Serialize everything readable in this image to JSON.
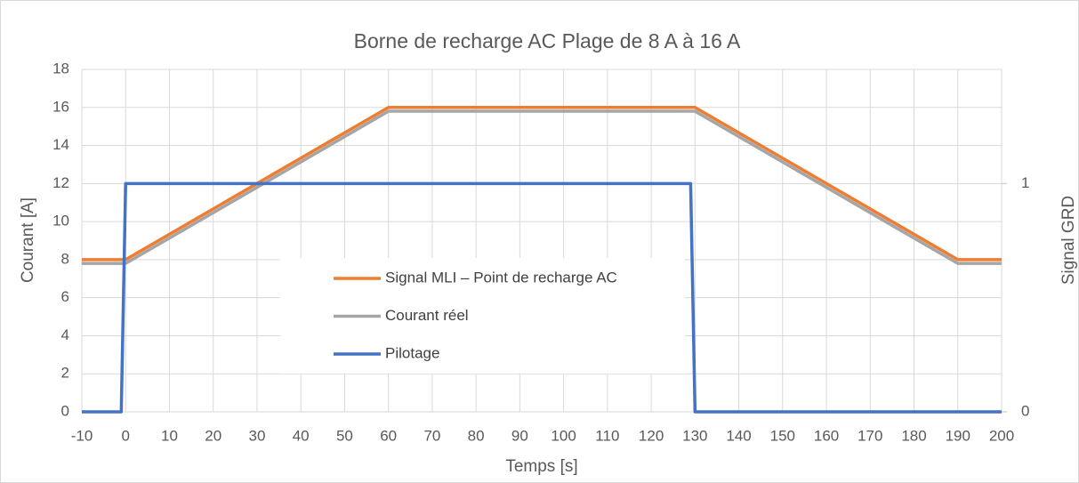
{
  "chart_data": {
    "type": "line",
    "title": "Borne de recharge AC Plage de 8 A à 16 A",
    "xlabel": "Temps [s]",
    "ylabel": "Courant [A]",
    "y2label": "Signal GRD",
    "xlim": [
      -10,
      200
    ],
    "xticks": [
      -10,
      0,
      10,
      20,
      30,
      40,
      50,
      60,
      70,
      80,
      90,
      100,
      110,
      120,
      130,
      140,
      150,
      160,
      170,
      180,
      190,
      200
    ],
    "ylim": [
      0,
      18
    ],
    "yticks": [
      0,
      2,
      4,
      6,
      8,
      10,
      12,
      14,
      16,
      18
    ],
    "y2lim": [
      0,
      1.5
    ],
    "y2ticks": [
      0,
      1
    ],
    "grid": true,
    "legend": "center",
    "series": [
      {
        "name": "Signal MLI – Point de recharge AC",
        "color": "#ed7d31",
        "x": [
          -10,
          0,
          60,
          130,
          190,
          200
        ],
        "values": [
          8,
          8,
          16,
          16,
          8,
          8
        ]
      },
      {
        "name": "Courant réel",
        "color": "#a5a5a5",
        "x": [
          -10,
          0,
          60,
          130,
          190,
          200
        ],
        "values": [
          7.8,
          7.8,
          15.8,
          15.8,
          7.8,
          7.8
        ]
      },
      {
        "name": "Pilotage",
        "color": "#4472c4",
        "axis": "y2",
        "x": [
          -10,
          -1,
          0,
          129,
          130,
          200
        ],
        "values": [
          0,
          0,
          1,
          1,
          0,
          0
        ]
      }
    ]
  }
}
